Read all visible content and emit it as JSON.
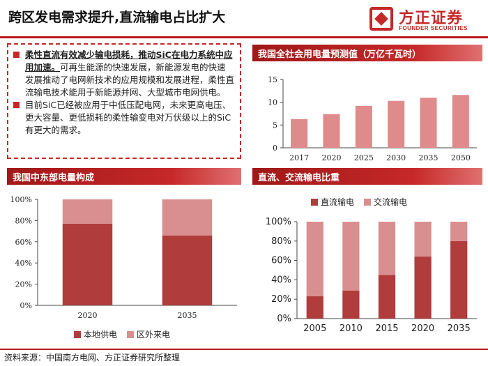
{
  "header": {
    "title": "跨区发电需求提升,直流输电占比扩大"
  },
  "logo": {
    "cn": "方正证券",
    "en": "FOUNDER SECURITIES"
  },
  "textbox": {
    "b1_bold": "柔性直流有效减少输电损耗，推动SiC在电力系统中应用加速。",
    "b1_rest": "可再生能源的快速发展，新能源发电的快速发展推动了电网新技术的应用规模和发展进程，柔性直流输电技术能用于新能源并网、大型城市电网供电。",
    "b2": "目前SiC已经被应用于中低压配电网，未来更高电压、更大容量、更低损耗的柔性输变电对万伏级以上的SiC有更大的需求。"
  },
  "footer": {
    "source": "资料来源：中国南方电网、方正证券研究所整理"
  },
  "colors": {
    "accent": "#c62828",
    "dark_bar": "#b03c3c",
    "light_bar": "#d98f8f",
    "bar": "#e08b8b"
  },
  "chart_data": [
    {
      "type": "bar",
      "title": "我国全社会用电量预测值（万亿千瓦时）",
      "categories": [
        "2017",
        "2020",
        "2025",
        "2030",
        "2035",
        "2050"
      ],
      "values": [
        6.3,
        7.4,
        9.2,
        10.3,
        11.0,
        11.6
      ],
      "ylim": [
        0,
        15
      ],
      "yticks": [
        "0",
        "5",
        "10",
        "15"
      ]
    },
    {
      "type": "bar",
      "title": "我国中东部电量构成",
      "categories": [
        "2020",
        "2035"
      ],
      "series": [
        {
          "name": "本地供电",
          "values": [
            77,
            66
          ]
        },
        {
          "name": "区外来电",
          "values": [
            23,
            34
          ]
        }
      ],
      "ylim": [
        0,
        100
      ],
      "yticks": [
        "0%",
        "20%",
        "40%",
        "60%",
        "80%",
        "100%"
      ]
    },
    {
      "type": "bar",
      "title": "直流、交流输电比重",
      "categories": [
        "2005",
        "2010",
        "2015",
        "2020",
        "2035"
      ],
      "series": [
        {
          "name": "直流输电",
          "values": [
            23,
            29,
            45,
            64,
            80
          ]
        },
        {
          "name": "交流输电",
          "values": [
            77,
            71,
            55,
            36,
            20
          ]
        }
      ],
      "ylim": [
        0,
        100
      ],
      "yticks": [
        "0%",
        "20%",
        "40%",
        "60%",
        "80%",
        "100%"
      ]
    }
  ]
}
